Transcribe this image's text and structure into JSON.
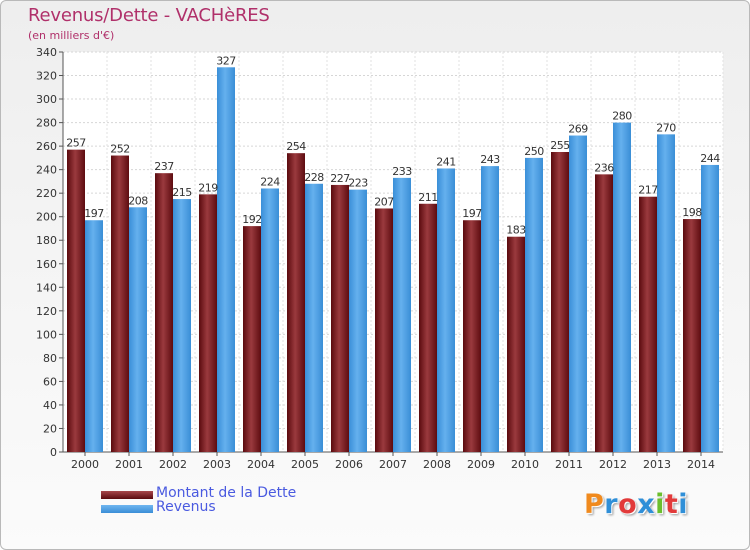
{
  "title": "Revenus/Dette - VACHèRES",
  "subtitle": "(en milliers d'€)",
  "logo": {
    "text": "Proxiti",
    "letter_colors": [
      "#f08a1e",
      "#2f8fd8",
      "#e23a3a",
      "#2f8fd8",
      "#6bbf2d",
      "#e23a3a",
      "#2f8fd8"
    ]
  },
  "colors": {
    "dette": "#6b0f14",
    "dette_highlight": "#a8484c",
    "revenus": "#3f98e0",
    "revenus_highlight": "#6fb6f0",
    "axis_text": "#333333"
  },
  "chart_data": {
    "type": "bar",
    "categories": [
      "2000",
      "2001",
      "2002",
      "2003",
      "2004",
      "2005",
      "2006",
      "2007",
      "2008",
      "2009",
      "2010",
      "2011",
      "2012",
      "2013",
      "2014"
    ],
    "series": [
      {
        "name": "Montant de la Dette",
        "values": [
          257,
          252,
          237,
          219,
          192,
          254,
          227,
          207,
          211,
          197,
          183,
          255,
          236,
          217,
          198
        ]
      },
      {
        "name": "Revenus",
        "values": [
          197,
          208,
          215,
          327,
          224,
          228,
          223,
          233,
          241,
          243,
          250,
          269,
          280,
          270,
          244
        ]
      }
    ],
    "ylim": [
      0,
      340
    ],
    "yticks": [
      0,
      20,
      40,
      60,
      80,
      100,
      120,
      140,
      160,
      180,
      200,
      220,
      240,
      260,
      280,
      300,
      320,
      340
    ],
    "grid": true,
    "legend_position": "bottom-left"
  }
}
